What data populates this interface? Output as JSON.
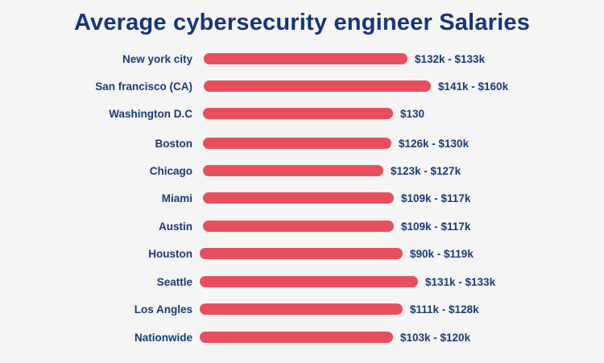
{
  "chart_data": {
    "type": "bar",
    "orientation": "horizontal",
    "title": "Average cybersecurity engineer Salaries",
    "xlabel": "",
    "ylabel": "",
    "grid": false,
    "legend": "none",
    "bar_color": "#e94e5e",
    "text_color": "#1b3a78",
    "categories": [
      "New york city",
      "San francisco (CA)",
      "Washington D.C",
      "Boston",
      "Chicago",
      "Miami",
      "Austin",
      "Houston",
      "Seattle",
      "Los Angles",
      "Nationwide"
    ],
    "value_labels": [
      "$132k - $133k",
      "$141k - $160k",
      "$130",
      "$126k - $130k",
      "$123k - $127k",
      "$109k - $117k",
      "$109k - $117k",
      "$90k - $119k",
      "$131k - $133k",
      "$111k - $128k",
      "$103k - $120k"
    ],
    "values": [
      133,
      160,
      130,
      130,
      127,
      117,
      117,
      119,
      133,
      128,
      120
    ],
    "value_unit": "thousand USD"
  }
}
